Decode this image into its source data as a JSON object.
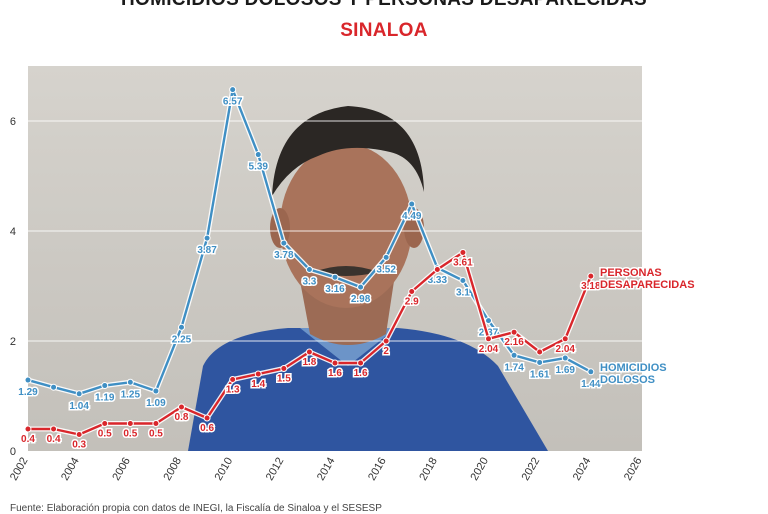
{
  "header": {
    "title": "HOMICIDIOS DOLOSOS Y PERSONAS DESAPARECIDAS",
    "subtitle": "SINALOA"
  },
  "colors": {
    "homicidios": "#3f8fc4",
    "desaparecidas": "#d9262b",
    "title_accent": "#d9262b",
    "gridline": "#ffffff"
  },
  "footer": {
    "source": "Fuente: Elaboración propia con datos de INEGI, la Fiscalía de Sinaloa y el SESESP"
  },
  "chart_data": {
    "type": "line",
    "title": "HOMICIDIOS DOLOSOS Y PERSONAS DESAPARECIDAS",
    "subtitle": "SINALOA",
    "x": [
      2002,
      2003,
      2004,
      2005,
      2006,
      2007,
      2008,
      2009,
      2010,
      2011,
      2012,
      2013,
      2014,
      2015,
      2016,
      2017,
      2018,
      2019,
      2020,
      2021,
      2022,
      2023,
      2024
    ],
    "xlim": [
      2002,
      2026
    ],
    "xticks": [
      "2002",
      "2004",
      "2006",
      "2008",
      "2010",
      "2012",
      "2014",
      "2016",
      "2018",
      "2020",
      "2022",
      "2024",
      "2026"
    ],
    "ylim": [
      0,
      7
    ],
    "yticks": [
      "0",
      "2",
      "4",
      "6"
    ],
    "grid": true,
    "series": [
      {
        "name": "HOMICIDIOS DOLOSOS",
        "color": "#3f8fc4",
        "values": [
          1.29,
          1.16,
          1.04,
          1.19,
          1.25,
          1.09,
          2.25,
          3.87,
          6.57,
          5.39,
          3.78,
          3.3,
          3.16,
          2.98,
          3.52,
          4.49,
          3.33,
          3.1,
          2.37,
          1.74,
          1.61,
          1.69,
          1.44
        ],
        "labels": [
          "1.29",
          "",
          "1.04",
          "1.19",
          "1.25",
          "1.09",
          "2.25",
          "3.87",
          "6.57",
          "5.39",
          "3.78",
          "3.3",
          "3.16",
          "2.98",
          "3.52",
          "4.49",
          "3.33",
          "3.1",
          "2.37",
          "1.74",
          "1.61",
          "1.69",
          "1.44"
        ]
      },
      {
        "name": "PERSONAS DESAPARECIDAS",
        "color": "#d9262b",
        "values": [
          0.4,
          0.4,
          0.3,
          0.5,
          0.5,
          0.5,
          0.8,
          0.6,
          1.3,
          1.4,
          1.5,
          1.8,
          1.6,
          1.6,
          2.0,
          2.9,
          3.3,
          3.61,
          2.04,
          2.16,
          1.8,
          2.04,
          3.18
        ],
        "labels": [
          "0.4",
          "0.4",
          "0.3",
          "0.5",
          "0.5",
          "0.5",
          "0.8",
          "0.6",
          "1.3",
          "1.4",
          "1.5",
          "1.8",
          "1.6",
          "1.6",
          "2",
          "2.9",
          "",
          "3.61",
          "2.04",
          "2.16",
          "",
          "2.04",
          "3.18"
        ]
      }
    ],
    "legend": [
      "PERSONAS",
      "DESAPARECIDAS",
      "HOMICIDIOS",
      "DOLOSOS"
    ]
  }
}
